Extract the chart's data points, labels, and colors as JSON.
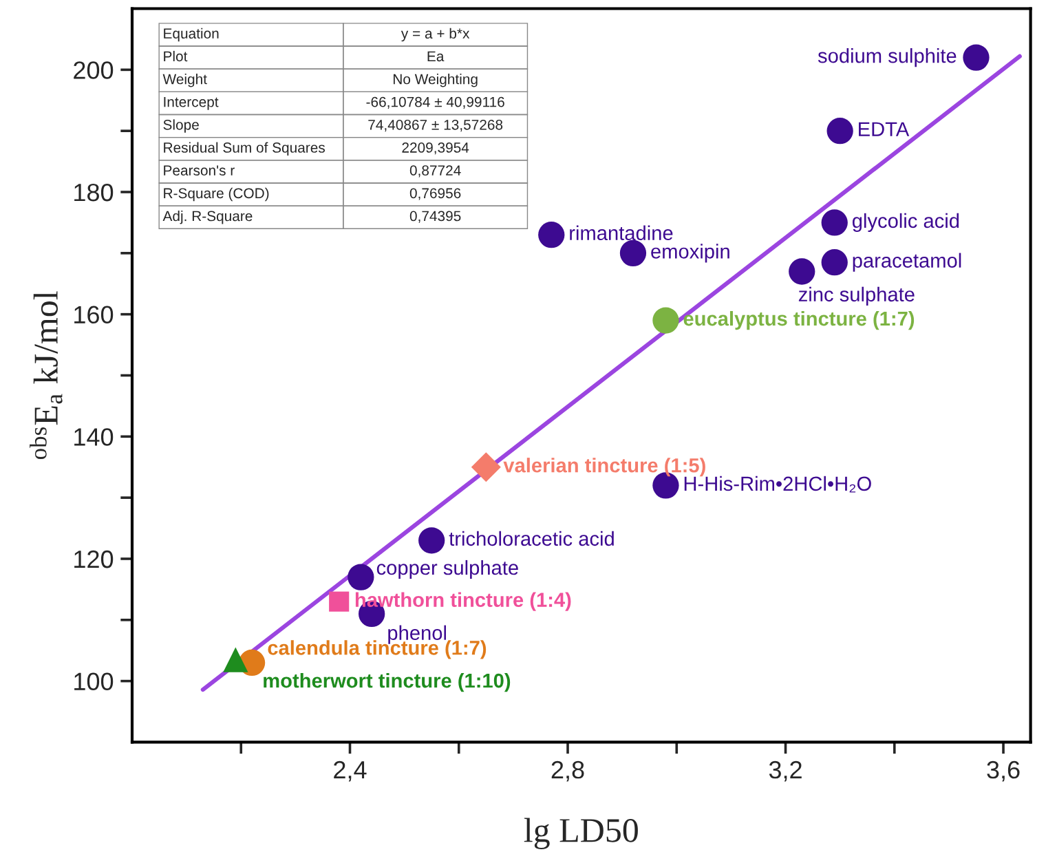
{
  "chart_data": {
    "type": "scatter",
    "xlabel": "lg LD50",
    "ylabel": "$^{obs}$E$_{a}$ kJ/mol",
    "xlim": [
      2.0,
      3.65
    ],
    "ylim": [
      90,
      210
    ],
    "xticks": [
      {
        "value": 2.4,
        "label": "2,4"
      },
      {
        "value": 2.6,
        "label": null
      },
      {
        "value": 2.8,
        "label": "2,8"
      },
      {
        "value": 3.0,
        "label": null
      },
      {
        "value": 3.2,
        "label": "3,2"
      },
      {
        "value": 3.4,
        "label": null
      },
      {
        "value": 3.6,
        "label": "3,6"
      },
      {
        "value": 2.2,
        "label": null
      }
    ],
    "yticks": [
      100,
      {
        "value": 110,
        "label": null
      },
      120,
      {
        "value": 130,
        "label": null
      },
      140,
      {
        "value": 150,
        "label": null
      },
      160,
      {
        "value": 170,
        "label": null
      },
      180,
      {
        "value": 190,
        "label": null
      },
      200
    ],
    "grid": false,
    "series": [
      {
        "type": "line",
        "color": "#9b45e0",
        "x": [
          2.13,
          3.63
        ],
        "values": [
          98.6,
          202.2
        ],
        "marker": "none",
        "line_style": "solid"
      },
      {
        "name": "sodium sulphite",
        "color": "#3d0a91",
        "marker": "circle",
        "x": [
          3.55
        ],
        "values": [
          202
        ]
      },
      {
        "name": "EDTA",
        "color": "#3d0a91",
        "marker": "circle",
        "x": [
          3.3
        ],
        "values": [
          190
        ]
      },
      {
        "name": "glycolic acid",
        "color": "#3d0a91",
        "marker": "circle",
        "x": [
          3.29
        ],
        "values": [
          175
        ]
      },
      {
        "name": "paracetamol",
        "color": "#3d0a91",
        "marker": "circle",
        "x": [
          3.29
        ],
        "values": [
          168.5
        ]
      },
      {
        "name": "zinc sulphate",
        "color": "#3d0a91",
        "marker": "circle",
        "x": [
          3.23
        ],
        "values": [
          167
        ]
      },
      {
        "name": "rimantadine",
        "color": "#3d0a91",
        "marker": "circle",
        "x": [
          2.77
        ],
        "values": [
          173
        ]
      },
      {
        "name": "emoxipin",
        "color": "#3d0a91",
        "marker": "circle",
        "x": [
          2.92
        ],
        "values": [
          170
        ]
      },
      {
        "name": "eucalyptus tincture (1:7)",
        "color": "#7cb342",
        "marker": "circle",
        "x": [
          2.98
        ],
        "values": [
          159
        ]
      },
      {
        "name": "valerian tincture (1:5)",
        "color": "#f47c6b",
        "marker": "diamond",
        "x": [
          2.65
        ],
        "values": [
          135
        ]
      },
      {
        "name": "H-His-Rim•2HCl•H₂O",
        "color": "#3d0a91",
        "marker": "circle",
        "x": [
          2.98
        ],
        "values": [
          132
        ]
      },
      {
        "name": "tricholoracetic acid",
        "color": "#3d0a91",
        "marker": "circle",
        "x": [
          2.55
        ],
        "values": [
          123
        ]
      },
      {
        "name": "copper sulphate",
        "color": "#3d0a91",
        "marker": "circle",
        "x": [
          2.42
        ],
        "values": [
          117
        ]
      },
      {
        "name": "hawthorn tincture (1:4)",
        "color": "#f0509a",
        "marker": "square",
        "x": [
          2.38
        ],
        "values": [
          113
        ]
      },
      {
        "name": "phenol",
        "color": "#3d0a91",
        "marker": "circle",
        "x": [
          2.44
        ],
        "values": [
          111
        ]
      },
      {
        "name": "calendula tincture (1:7)",
        "color": "#e07b1a",
        "marker": "circle",
        "x": [
          2.22
        ],
        "values": [
          103
        ]
      },
      {
        "name": "motherwort tincture (1:10)",
        "color": "#1e8c1e",
        "marker": "triangle",
        "x": [
          2.19
        ],
        "values": [
          103.5
        ]
      }
    ],
    "annotations": [
      "Equation",
      "y = a + b*x",
      "Plot",
      "Ea",
      "Weight",
      "No Weighting",
      "Intercept",
      "-66,10784 ± 40,99116",
      "Slope",
      "74,40867 ± 13,57268",
      "Residual Sum of Squares",
      "2209,3954",
      "Pearson's r",
      "0,87724",
      "R-Square (COD)",
      "0,76956",
      "Adj. R-Square",
      "0,74395"
    ]
  }
}
